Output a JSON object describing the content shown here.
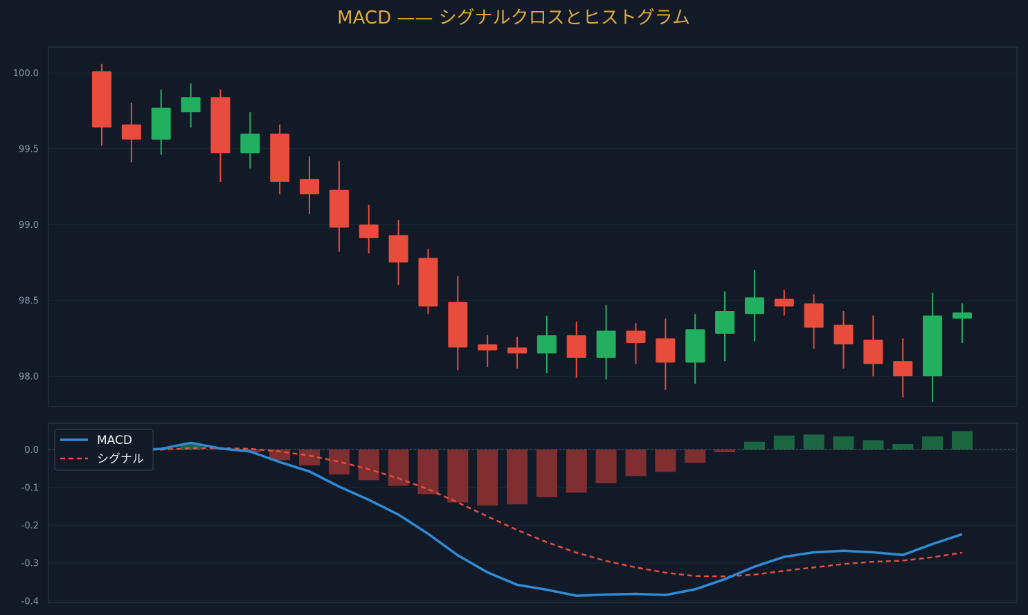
{
  "chart_data": {
    "title": "MACD —— シグナルクロスとヒストグラム",
    "colors": {
      "background": "#131a27",
      "up": "#22b060",
      "down": "#e84c3d",
      "macd": "#2f8bd4",
      "signal": "#e84c3d",
      "title": "#e0a93a",
      "hist_up": "#1c6642",
      "hist_down": "#7f2f2f"
    },
    "price": {
      "type": "candlestick",
      "ylim": [
        97.8,
        100.17
      ],
      "yticks": [
        "98.0",
        "98.5",
        "99.0",
        "99.5",
        "100.0"
      ],
      "ytick_values": [
        98.0,
        98.5,
        99.0,
        99.5,
        100.0
      ],
      "candles": [
        {
          "o": 100.01,
          "h": 100.06,
          "l": 99.52,
          "c": 99.64
        },
        {
          "o": 99.66,
          "h": 99.8,
          "l": 99.41,
          "c": 99.56
        },
        {
          "o": 99.56,
          "h": 99.89,
          "l": 99.46,
          "c": 99.77
        },
        {
          "o": 99.74,
          "h": 99.93,
          "l": 99.64,
          "c": 99.84
        },
        {
          "o": 99.84,
          "h": 99.89,
          "l": 99.28,
          "c": 99.47
        },
        {
          "o": 99.47,
          "h": 99.74,
          "l": 99.37,
          "c": 99.6
        },
        {
          "o": 99.6,
          "h": 99.66,
          "l": 99.2,
          "c": 99.28
        },
        {
          "o": 99.3,
          "h": 99.45,
          "l": 99.07,
          "c": 99.2
        },
        {
          "o": 99.23,
          "h": 99.42,
          "l": 98.82,
          "c": 98.98
        },
        {
          "o": 99.0,
          "h": 99.13,
          "l": 98.81,
          "c": 98.91
        },
        {
          "o": 98.93,
          "h": 99.03,
          "l": 98.6,
          "c": 98.75
        },
        {
          "o": 98.78,
          "h": 98.84,
          "l": 98.41,
          "c": 98.46
        },
        {
          "o": 98.49,
          "h": 98.66,
          "l": 98.04,
          "c": 98.19
        },
        {
          "o": 98.21,
          "h": 98.27,
          "l": 98.06,
          "c": 98.17
        },
        {
          "o": 98.19,
          "h": 98.26,
          "l": 98.05,
          "c": 98.15
        },
        {
          "o": 98.15,
          "h": 98.4,
          "l": 98.02,
          "c": 98.27
        },
        {
          "o": 98.27,
          "h": 98.36,
          "l": 97.99,
          "c": 98.12
        },
        {
          "o": 98.12,
          "h": 98.47,
          "l": 97.98,
          "c": 98.3
        },
        {
          "o": 98.3,
          "h": 98.35,
          "l": 98.08,
          "c": 98.22
        },
        {
          "o": 98.25,
          "h": 98.38,
          "l": 97.91,
          "c": 98.09
        },
        {
          "o": 98.09,
          "h": 98.41,
          "l": 97.95,
          "c": 98.31
        },
        {
          "o": 98.28,
          "h": 98.56,
          "l": 98.1,
          "c": 98.43
        },
        {
          "o": 98.41,
          "h": 98.7,
          "l": 98.23,
          "c": 98.52
        },
        {
          "o": 98.51,
          "h": 98.57,
          "l": 98.4,
          "c": 98.46
        },
        {
          "o": 98.48,
          "h": 98.54,
          "l": 98.18,
          "c": 98.32
        },
        {
          "o": 98.34,
          "h": 98.43,
          "l": 98.05,
          "c": 98.21
        },
        {
          "o": 98.24,
          "h": 98.4,
          "l": 98.0,
          "c": 98.08
        },
        {
          "o": 98.1,
          "h": 98.25,
          "l": 97.86,
          "c": 98.0
        },
        {
          "o": 98.0,
          "h": 98.55,
          "l": 97.83,
          "c": 98.4
        },
        {
          "o": 98.38,
          "h": 98.48,
          "l": 98.22,
          "c": 98.42
        }
      ]
    },
    "macd": {
      "type": "line+bar",
      "ylim": [
        -0.405,
        0.07
      ],
      "yticks": [
        "-0.4",
        "-0.3",
        "-0.2",
        "-0.1",
        "0.0"
      ],
      "ytick_values": [
        -0.4,
        -0.3,
        -0.2,
        -0.1,
        0.0
      ],
      "legend": [
        {
          "name": "MACD",
          "style": "solid"
        },
        {
          "name": "シグナル",
          "style": "dashed"
        }
      ],
      "series": [
        {
          "name": "MACD",
          "values": [
            -0.003,
            -0.002,
            0.002,
            0.018,
            0.003,
            -0.005,
            -0.033,
            -0.058,
            -0.098,
            -0.133,
            -0.172,
            -0.223,
            -0.28,
            -0.325,
            -0.358,
            -0.371,
            -0.387,
            -0.384,
            -0.382,
            -0.385,
            -0.37,
            -0.343,
            -0.31,
            -0.284,
            -0.272,
            -0.268,
            -0.272,
            -0.279,
            -0.25,
            -0.224
          ]
        },
        {
          "name": "シグナル",
          "values": [
            -0.001,
            -0.001,
            0.0,
            0.004,
            0.004,
            0.002,
            -0.005,
            -0.016,
            -0.032,
            -0.052,
            -0.076,
            -0.105,
            -0.14,
            -0.177,
            -0.213,
            -0.245,
            -0.273,
            -0.295,
            -0.312,
            -0.326,
            -0.335,
            -0.336,
            -0.331,
            -0.321,
            -0.312,
            -0.303,
            -0.297,
            -0.294,
            -0.285,
            -0.273
          ]
        }
      ],
      "histogram": [
        -0.002,
        -0.001,
        0.002,
        0.014,
        -0.001,
        -0.007,
        -0.028,
        -0.042,
        -0.066,
        -0.081,
        -0.096,
        -0.118,
        -0.14,
        -0.148,
        -0.145,
        -0.126,
        -0.114,
        -0.089,
        -0.07,
        -0.059,
        -0.035,
        -0.007,
        0.021,
        0.037,
        0.04,
        0.035,
        0.025,
        0.015,
        0.035,
        0.049
      ]
    }
  }
}
